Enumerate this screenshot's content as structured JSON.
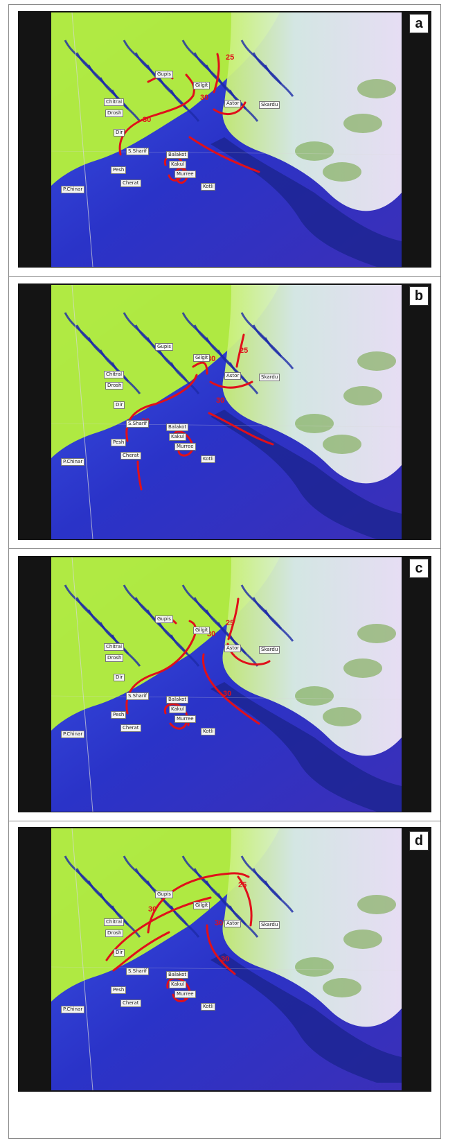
{
  "panels": [
    {
      "letter": "a"
    },
    {
      "letter": "b"
    },
    {
      "letter": "c"
    },
    {
      "letter": "d"
    }
  ],
  "place_labels": [
    "Gupis",
    "Gilgit",
    "Astor",
    "Skardu",
    "Chitral",
    "Drosh",
    "Dir",
    "S.Sharif",
    "Balakot",
    "Kakul",
    "Murree",
    "Kotli",
    "Pesh",
    "Cherat",
    "P.Chinar"
  ],
  "contour_values": [
    "25",
    "30",
    "35"
  ],
  "colors": {
    "contour": "#e0101a",
    "snow": "#b6f23a",
    "ground": "#2a3fd2",
    "cloud": "#e9e9f3"
  }
}
